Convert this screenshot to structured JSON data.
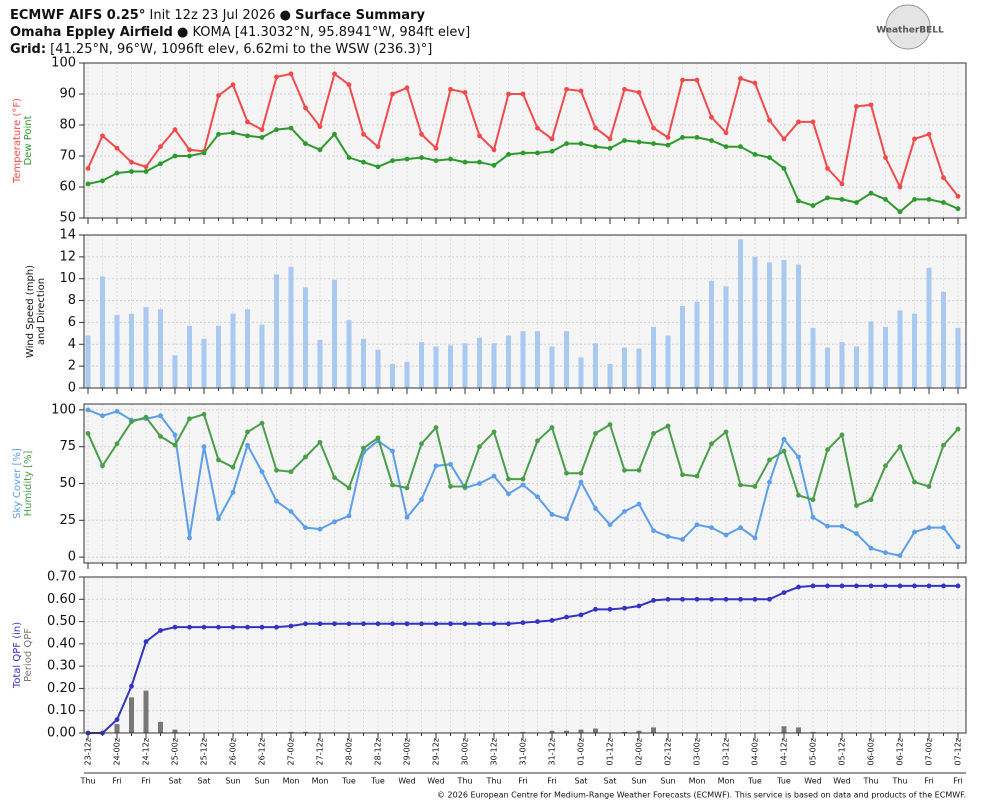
{
  "header": {
    "line1": {
      "model": "ECMWF AIFS 0.25°",
      "init": " Init 12z 23 Jul 2026 ● ",
      "product": "Surface Summary"
    },
    "line2": {
      "station": "Omaha Eppley Airfield",
      "info": " ● KOMA [41.3032°N, 95.8941°W, 984ft elev]"
    },
    "line3": {
      "label": "Grid:",
      "info": " [41.25°N, 96°W, 1096ft elev, 6.62mi to the WSW (236.3)°]"
    },
    "logo": "WeatherBELL"
  },
  "footer": "© 2026 European Centre for Medium-Range Weather Forecasts (ECMWF). This service is based on data and products of the ECMWF.",
  "chart_data": [
    {
      "type": "line",
      "ylim": [
        50,
        100
      ],
      "yticks": [
        50,
        60,
        70,
        80,
        90,
        100
      ],
      "grid": true,
      "series": [
        {
          "name": "Temperature (°F)",
          "color": "#f24a4a",
          "values": [
            66,
            76.5,
            72.5,
            68,
            66.5,
            73,
            78.5,
            72,
            71.5,
            89.5,
            93,
            81,
            78.5,
            95.5,
            96.5,
            85.5,
            79.5,
            96.5,
            93,
            77,
            73,
            90,
            92,
            77,
            72.5,
            91.5,
            90.5,
            76.5,
            72,
            90,
            90,
            79,
            75.5,
            91.5,
            91,
            79,
            75.5,
            91.5,
            90.5,
            79,
            76,
            94.5,
            94.5,
            82.5,
            77.5,
            95,
            93.5,
            81.5,
            75.5,
            81,
            81,
            66,
            61,
            86,
            86.5,
            69.5,
            60,
            75.5,
            77,
            63,
            57
          ]
        },
        {
          "name": "Dew Point",
          "color": "#2e9a2e",
          "values": [
            61,
            62,
            64.5,
            65,
            65,
            67.5,
            70,
            70,
            71,
            77,
            77.5,
            76.5,
            76,
            78.5,
            79,
            74,
            72,
            77,
            69.5,
            68,
            66.5,
            68.5,
            69,
            69.5,
            68.5,
            69,
            68,
            68,
            67,
            70.5,
            71,
            71,
            71.5,
            74,
            74,
            73,
            72.5,
            75,
            74.5,
            74,
            73.5,
            76,
            76,
            75,
            73,
            73,
            70.5,
            69.5,
            66,
            55.5,
            54,
            56.5,
            56,
            55,
            58,
            56,
            52,
            56,
            56,
            55,
            53
          ]
        }
      ]
    },
    {
      "type": "bar",
      "ylim": [
        0,
        14
      ],
      "yticks": [
        0,
        2,
        4,
        6,
        8,
        10,
        12,
        14
      ],
      "grid": true,
      "ylabel": [
        "Wind Speed (mph)",
        "and Direction"
      ],
      "series": [
        {
          "color": "#a9c9f1",
          "values": [
            4.8,
            10.2,
            6.7,
            6.8,
            7.4,
            7.2,
            3,
            5.7,
            4.5,
            5.7,
            6.8,
            7.2,
            5.8,
            10.4,
            11.1,
            9.2,
            4.4,
            9.9,
            6.2,
            4.5,
            3.5,
            2.2,
            2.4,
            4.2,
            3.8,
            3.9,
            4.1,
            4.6,
            4.1,
            4.8,
            5.2,
            5.2,
            3.8,
            5.2,
            2.8,
            4.1,
            2.2,
            3.7,
            3.6,
            5.6,
            4.8,
            7.5,
            7.9,
            9.8,
            9.3,
            13.6,
            12,
            11.5,
            11.7,
            11.3,
            5.5,
            3.7,
            4.2,
            3.8,
            6.1,
            5.6,
            7.1,
            6.8,
            11,
            8.8,
            5.5
          ]
        }
      ]
    },
    {
      "type": "line",
      "ylim": [
        -4,
        104
      ],
      "yticks": [
        0,
        25,
        50,
        75,
        100
      ],
      "grid": true,
      "series": [
        {
          "name": "Sky Cover [%]",
          "color": "#5c9ee9",
          "values": [
            100,
            96,
            99,
            93,
            94,
            96,
            83,
            13,
            75,
            26,
            44,
            76,
            58,
            38,
            31,
            20,
            19,
            24,
            28,
            71,
            79,
            72,
            27,
            39,
            62,
            63,
            47,
            50,
            55,
            43,
            49,
            41,
            29,
            26,
            51,
            33,
            22,
            31,
            36,
            18,
            14,
            12,
            22,
            20,
            15,
            20,
            13,
            51,
            80,
            68,
            27,
            21,
            21,
            16,
            6,
            3,
            1,
            17,
            20,
            20,
            7
          ]
        },
        {
          "name": "Humidity [%]",
          "color": "#4a9e4a",
          "values": [
            84,
            62,
            77,
            92,
            95,
            82,
            76,
            94,
            97,
            66,
            61,
            85,
            91,
            59,
            58,
            68,
            78,
            54,
            47,
            74,
            81,
            49,
            47,
            77,
            88,
            48,
            48,
            75,
            85,
            53,
            53,
            79,
            88,
            57,
            57,
            84,
            90,
            59,
            59,
            84,
            89,
            56,
            55,
            77,
            85,
            49,
            48,
            66,
            72,
            42,
            39,
            73,
            83,
            35,
            39,
            62,
            75,
            51,
            48,
            76,
            87
          ]
        }
      ]
    },
    {
      "type": "combo",
      "ylim": [
        0,
        0.7
      ],
      "yticks": [
        {
          "value": 0,
          "label": "0.00"
        },
        {
          "value": 0.1,
          "label": "0.10"
        },
        {
          "value": 0.2,
          "label": "0.20"
        },
        {
          "value": 0.3,
          "label": "0.30"
        },
        {
          "value": 0.4,
          "label": "0.40"
        },
        {
          "value": 0.5,
          "label": "0.50"
        },
        {
          "value": 0.6,
          "label": "0.60"
        },
        {
          "value": 0.7,
          "label": "0.70"
        }
      ],
      "grid": true,
      "categories": [
        "23-12z",
        null,
        "24-00z",
        null,
        "24-12z",
        null,
        "25-00z",
        null,
        "25-12z",
        null,
        "26-00z",
        null,
        "26-12z",
        null,
        "27-00z",
        null,
        "27-12z",
        null,
        "28-00z",
        null,
        "28-12z",
        null,
        "29-00z",
        null,
        "29-12z",
        null,
        "30-00z",
        null,
        "30-12z",
        null,
        "31-00z",
        null,
        "31-12z",
        null,
        "01-00z",
        null,
        "01-12z",
        null,
        "02-00z",
        null,
        "02-12z",
        null,
        "03-00z",
        null,
        "03-12z",
        null,
        "04-00z",
        null,
        "04-12z",
        null,
        "05-00z",
        null,
        "05-12z",
        null,
        "06-00z",
        null,
        "06-12z",
        null,
        "07-00z",
        null,
        "07-12z"
      ],
      "weekdays": [
        "Thu",
        null,
        "Fri",
        null,
        "Fri",
        null,
        "Sat",
        null,
        "Sat",
        null,
        "Sun",
        null,
        "Sun",
        null,
        "Mon",
        null,
        "Mon",
        null,
        "Tue",
        null,
        "Tue",
        null,
        "Wed",
        null,
        "Wed",
        null,
        "Thu",
        null,
        "Thu",
        null,
        "Fri",
        null,
        "Fri",
        null,
        "Sat",
        null,
        "Sat",
        null,
        "Sun",
        null,
        "Sun",
        null,
        "Mon",
        null,
        "Mon",
        null,
        "Tue",
        null,
        "Tue",
        null,
        "Wed",
        null,
        "Wed",
        null,
        "Thu",
        null,
        "Thu",
        null,
        "Fri",
        null,
        "Fri"
      ],
      "series": [
        {
          "name": "Total QPF (in)",
          "type": "line",
          "color": "#3434c4",
          "values": [
            0,
            0,
            0.06,
            0.21,
            0.41,
            0.46,
            0.475,
            0.475,
            0.475,
            0.475,
            0.475,
            0.475,
            0.475,
            0.475,
            0.48,
            0.49,
            0.49,
            0.49,
            0.49,
            0.49,
            0.49,
            0.49,
            0.49,
            0.49,
            0.49,
            0.49,
            0.49,
            0.49,
            0.49,
            0.49,
            0.495,
            0.5,
            0.505,
            0.52,
            0.53,
            0.555,
            0.555,
            0.56,
            0.57,
            0.595,
            0.6,
            0.6,
            0.6,
            0.6,
            0.6,
            0.6,
            0.6,
            0.6,
            0.63,
            0.655,
            0.66,
            0.66,
            0.66,
            0.66,
            0.66,
            0.66,
            0.66,
            0.66,
            0.66,
            0.66,
            0.66
          ]
        },
        {
          "name": "Period QPF",
          "type": "bar",
          "color": "#777777",
          "values": [
            0,
            0,
            0.04,
            0.16,
            0.19,
            0.05,
            0.015,
            0,
            0,
            0,
            0,
            0,
            0,
            0,
            0.005,
            0.005,
            0,
            0,
            0,
            0,
            0,
            0,
            0,
            0,
            0,
            0,
            0,
            0,
            0,
            0,
            0.005,
            0,
            0.01,
            0.01,
            0.015,
            0.02,
            0,
            0.005,
            0.01,
            0.025,
            0,
            0,
            0,
            0,
            0,
            0,
            0,
            0,
            0.03,
            0.025,
            0.005,
            0,
            0,
            0,
            0,
            0,
            0,
            0,
            0,
            0,
            0
          ]
        }
      ]
    }
  ]
}
